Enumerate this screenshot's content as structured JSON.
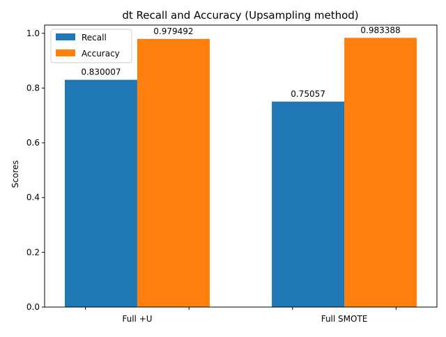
{
  "chart_data": {
    "type": "bar",
    "title": "dt Recall and Accuracy (Upsampling method)",
    "xlabel": "",
    "ylabel": "Scores",
    "categories": [
      "Full +U",
      "Full SMOTE"
    ],
    "series": [
      {
        "name": "Recall",
        "color": "#1f77b4",
        "values": [
          0.830007,
          0.75057
        ],
        "labels": [
          "0.830007",
          "0.75057"
        ]
      },
      {
        "name": "Accuracy",
        "color": "#ff7f0e",
        "values": [
          0.979492,
          0.983388
        ],
        "labels": [
          "0.979492",
          "0.983388"
        ]
      }
    ],
    "ylim": [
      0,
      1.03
    ],
    "yticks": [
      0.0,
      0.2,
      0.4,
      0.6,
      0.8,
      1.0
    ],
    "ytick_labels": [
      "0.0",
      "0.2",
      "0.4",
      "0.6",
      "0.8",
      "1.0"
    ],
    "grid": false,
    "legend_position": "upper-left"
  }
}
